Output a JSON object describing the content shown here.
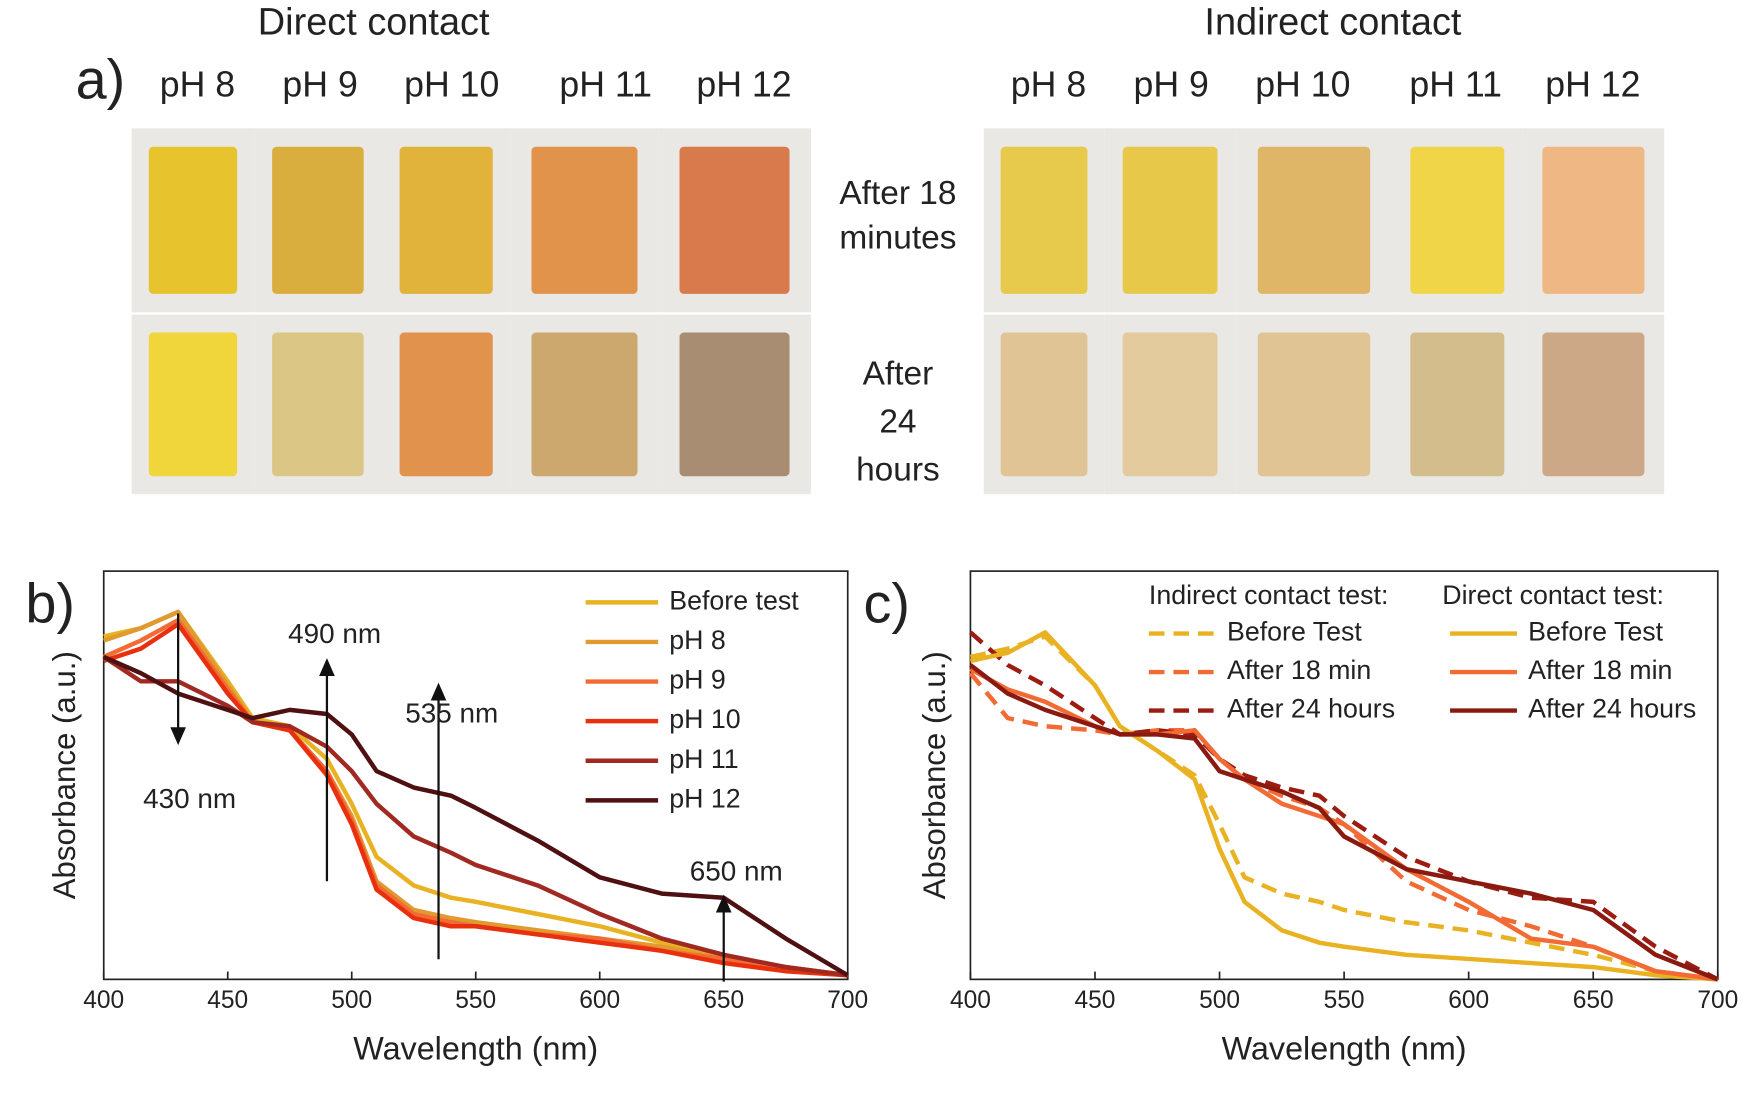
{
  "photos": {
    "label": "a)",
    "groups": [
      {
        "title": "Direct contact",
        "columns": [
          "pH 8",
          "pH 9",
          "pH 10",
          "pH 11",
          "pH 12"
        ]
      },
      {
        "title": "Indirect contact",
        "columns": [
          "pH 8",
          "pH 9",
          "pH 10",
          "pH 11",
          "pH 12"
        ]
      }
    ],
    "rows": [
      [
        "After 18",
        "minutes"
      ],
      [
        "After",
        "24",
        "hours"
      ]
    ]
  },
  "chart_data": [
    {
      "type": "line",
      "label": "b)",
      "xlabel": "Wavelength (nm)",
      "ylabel": "Absorbance (a.u.)",
      "xlim": [
        400,
        700
      ],
      "xticks": [
        400,
        450,
        500,
        550,
        600,
        650,
        700
      ],
      "ylim": [
        0,
        1
      ],
      "x": [
        400,
        415,
        430,
        450,
        460,
        475,
        490,
        500,
        510,
        525,
        540,
        550,
        575,
        600,
        625,
        650,
        675,
        700
      ],
      "series": [
        {
          "name": "Before test",
          "color": "#e8b222",
          "values": [
            0.84,
            0.86,
            0.9,
            0.73,
            0.64,
            0.62,
            0.54,
            0.43,
            0.3,
            0.23,
            0.2,
            0.19,
            0.16,
            0.13,
            0.09,
            0.05,
            0.03,
            0.01
          ]
        },
        {
          "name": "pH 8",
          "color": "#e09a30",
          "values": [
            0.83,
            0.86,
            0.9,
            0.72,
            0.63,
            0.61,
            0.51,
            0.4,
            0.24,
            0.17,
            0.15,
            0.14,
            0.12,
            0.1,
            0.08,
            0.05,
            0.03,
            0.01
          ]
        },
        {
          "name": "pH 9",
          "color": "#f26a34",
          "values": [
            0.79,
            0.83,
            0.88,
            0.71,
            0.63,
            0.61,
            0.51,
            0.39,
            0.23,
            0.16,
            0.14,
            0.13,
            0.11,
            0.1,
            0.07,
            0.05,
            0.03,
            0.01
          ]
        },
        {
          "name": "pH 10",
          "color": "#e8300e",
          "values": [
            0.78,
            0.81,
            0.87,
            0.7,
            0.63,
            0.61,
            0.5,
            0.38,
            0.22,
            0.15,
            0.13,
            0.13,
            0.11,
            0.09,
            0.07,
            0.04,
            0.02,
            0.01
          ]
        },
        {
          "name": "pH 11",
          "color": "#a02a22",
          "values": [
            0.79,
            0.73,
            0.73,
            0.67,
            0.63,
            0.62,
            0.57,
            0.51,
            0.43,
            0.35,
            0.31,
            0.28,
            0.23,
            0.16,
            0.1,
            0.06,
            0.03,
            0.01
          ]
        },
        {
          "name": "pH 12",
          "color": "#4e1010",
          "values": [
            0.79,
            0.75,
            0.7,
            0.66,
            0.64,
            0.66,
            0.65,
            0.6,
            0.51,
            0.47,
            0.45,
            0.42,
            0.34,
            0.25,
            0.21,
            0.2,
            0.1,
            0.01
          ]
        }
      ],
      "annotations": [
        {
          "text": "430 nm",
          "x": 430
        },
        {
          "text": "490 nm",
          "x": 490
        },
        {
          "text": "535 nm",
          "x": 535
        },
        {
          "text": "650 nm",
          "x": 650
        }
      ]
    },
    {
      "type": "line",
      "label": "c)",
      "xlabel": "Wavelength (nm)",
      "ylabel": "Absorbance (a.u.)",
      "xlim": [
        400,
        700
      ],
      "xticks": [
        400,
        450,
        500,
        550,
        600,
        650,
        700
      ],
      "ylim": [
        0,
        1
      ],
      "legend_titles": [
        "Indirect contact test:",
        "Direct contact test:"
      ],
      "x": [
        400,
        415,
        430,
        450,
        460,
        475,
        490,
        500,
        510,
        525,
        540,
        550,
        575,
        600,
        625,
        650,
        675,
        700
      ],
      "series": [
        {
          "name": "Before Test",
          "group": 0,
          "dashed": true,
          "color": "#e8b222",
          "values": [
            0.79,
            0.81,
            0.84,
            0.72,
            0.62,
            0.56,
            0.5,
            0.38,
            0.25,
            0.21,
            0.19,
            0.17,
            0.14,
            0.12,
            0.09,
            0.06,
            0.02,
            0
          ]
        },
        {
          "name": "After 18 min",
          "group": 0,
          "dashed": true,
          "color": "#f26a34",
          "values": [
            0.75,
            0.64,
            0.62,
            0.61,
            0.6,
            0.61,
            0.61,
            0.54,
            0.49,
            0.45,
            0.42,
            0.38,
            0.24,
            0.17,
            0.13,
            0.08,
            0.02,
            0
          ]
        },
        {
          "name": "After 24 hours",
          "group": 0,
          "dashed": true,
          "color": "#9c1c12",
          "values": [
            0.85,
            0.77,
            0.72,
            0.64,
            0.6,
            0.61,
            0.6,
            0.54,
            0.5,
            0.47,
            0.45,
            0.4,
            0.3,
            0.24,
            0.2,
            0.19,
            0.08,
            0
          ]
        },
        {
          "name": "Before Test",
          "group": 1,
          "dashed": false,
          "color": "#e8b222",
          "values": [
            0.78,
            0.8,
            0.85,
            0.72,
            0.62,
            0.56,
            0.49,
            0.32,
            0.19,
            0.12,
            0.09,
            0.08,
            0.06,
            0.05,
            0.04,
            0.03,
            0.01,
            0
          ]
        },
        {
          "name": "After 18 min",
          "group": 1,
          "dashed": false,
          "color": "#f26a34",
          "values": [
            0.76,
            0.71,
            0.68,
            0.62,
            0.6,
            0.6,
            0.61,
            0.54,
            0.49,
            0.43,
            0.4,
            0.38,
            0.27,
            0.19,
            0.1,
            0.08,
            0.02,
            0
          ]
        },
        {
          "name": "After 24 hours",
          "group": 1,
          "dashed": false,
          "color": "#8a1a10",
          "values": [
            0.77,
            0.7,
            0.66,
            0.62,
            0.6,
            0.6,
            0.59,
            0.51,
            0.49,
            0.46,
            0.42,
            0.35,
            0.27,
            0.24,
            0.21,
            0.17,
            0.06,
            0
          ]
        }
      ]
    }
  ]
}
